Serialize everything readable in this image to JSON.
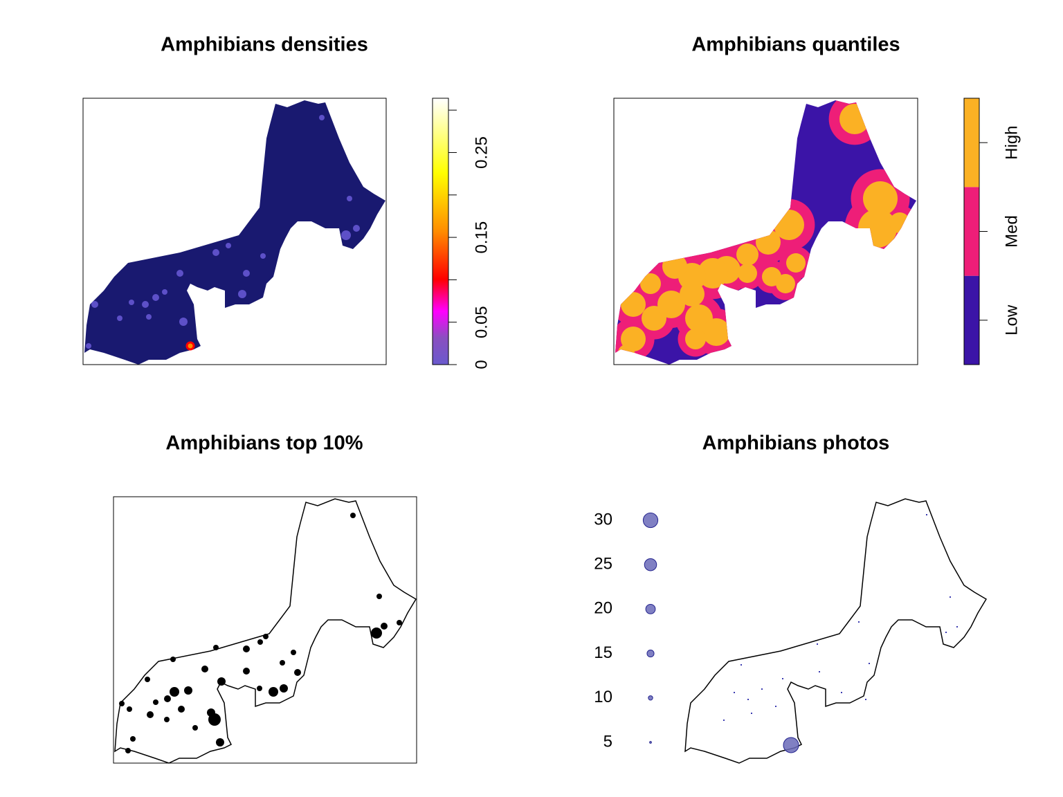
{
  "panels": [
    {
      "title": "Amphibians densities",
      "colorbar": {
        "lim": [
          0,
          0.314
        ],
        "ticks": [
          0,
          0.05,
          {
            "value": 0.1,
            "label": null
          },
          0.15,
          {
            "value": 0.2,
            "label": null
          },
          0.25,
          {
            "value": 0.3,
            "label": null
          }
        ]
      }
    },
    {
      "title": "Amphibians quantiles",
      "classes": [
        {
          "label": "Low",
          "color": "#3b14a7"
        },
        {
          "label": "Med",
          "color": "#ee1e78"
        },
        {
          "label": "High",
          "color": "#fbb124"
        }
      ]
    },
    {
      "title": "Amphibians top 10%"
    },
    {
      "title": "Amphibians photos",
      "legend": {
        "values": [
          30,
          25,
          20,
          15,
          10,
          5
        ],
        "color": "#6a6ab8"
      }
    }
  ]
}
